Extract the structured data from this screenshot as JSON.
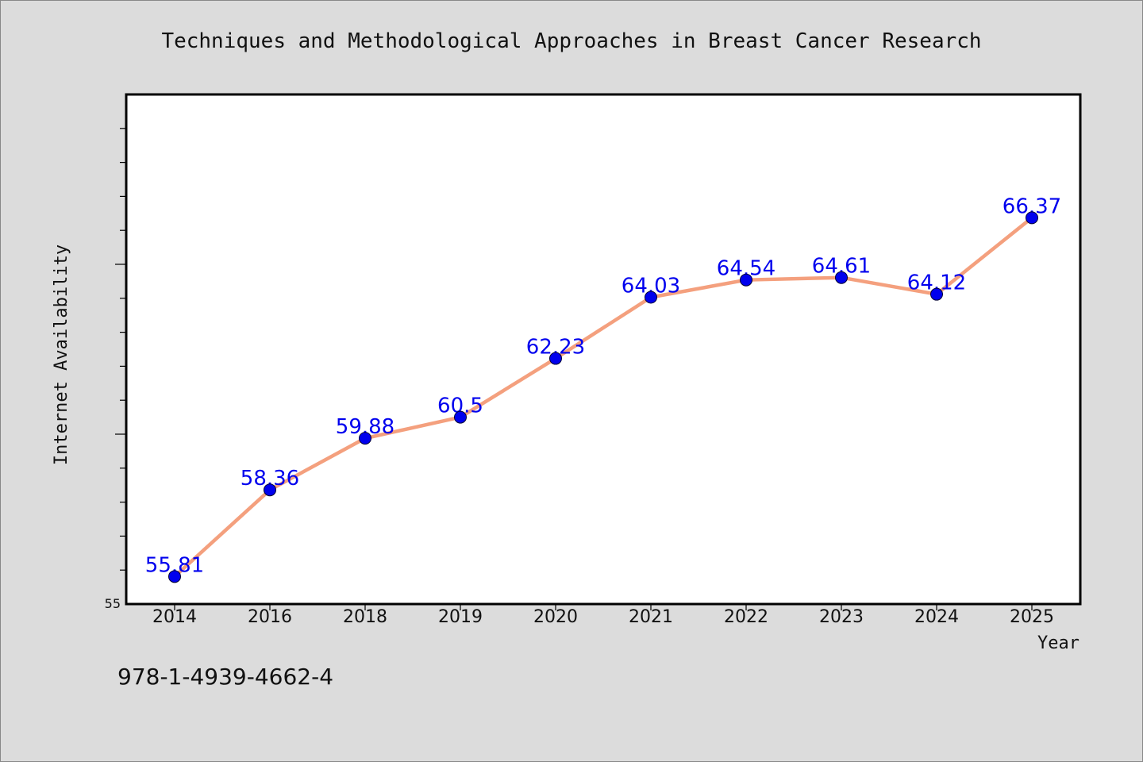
{
  "chart_data": {
    "type": "line",
    "title": "Techniques and Methodological Approaches in Breast Cancer Research",
    "xlabel": "Year",
    "ylabel": "Internet Availability",
    "categories": [
      "2014",
      "2016",
      "2018",
      "2019",
      "2020",
      "2021",
      "2022",
      "2023",
      "2024",
      "2025"
    ],
    "series": [
      {
        "values": [
          55.81,
          58.36,
          59.88,
          60.5,
          62.23,
          64.03,
          64.54,
          64.61,
          64.12,
          66.37
        ],
        "labels": [
          "55.81",
          "58.36",
          "59.88",
          "60.5",
          "62.23",
          "64.03",
          "64.54",
          "64.61",
          "64.12",
          "66.37"
        ]
      }
    ],
    "ylim": [
      55,
      70
    ],
    "y_tick_labels": [
      "55"
    ],
    "grid": false,
    "colors": {
      "line": "#f4a07e",
      "marker": "#0000ee",
      "data_label": "#0000ee"
    }
  },
  "footer_text": "978-1-4939-4662-4"
}
